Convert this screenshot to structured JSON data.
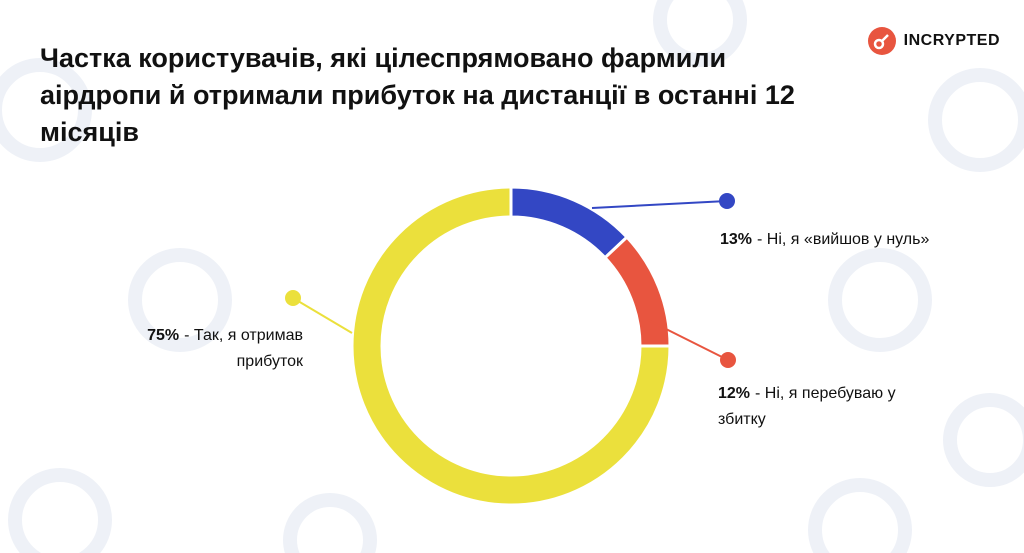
{
  "brand": "INCRYPTED",
  "chart_data": {
    "type": "donut",
    "title": "Частка користувачів, які цілеспрямовано фармили аірдропи й отримали прибуток на дистанції в останні 12 місяців",
    "categories": [
      "- Ні, я «вийшов у нуль»",
      "- Ні, я перебуваю у збитку",
      "- Так, я отримав прибуток"
    ],
    "values": [
      13,
      12,
      75
    ],
    "value_labels": [
      "13%",
      "12%",
      "75%"
    ],
    "colors": [
      "#3347c4",
      "#e8553f",
      "#ebe03c"
    ]
  }
}
